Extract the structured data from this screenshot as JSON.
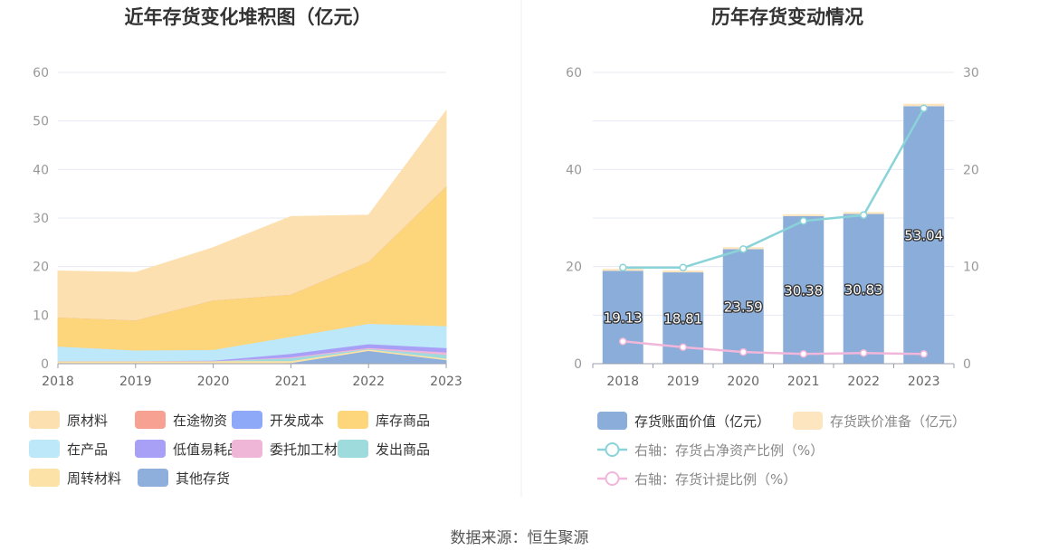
{
  "source": "数据来源：恒生聚源",
  "chart_data": [
    {
      "type": "area",
      "stacked": true,
      "title": "近年存货变化堆积图（亿元）",
      "x": [
        "2018",
        "2019",
        "2020",
        "2021",
        "2022",
        "2023"
      ],
      "ylim": [
        0,
        60
      ],
      "yticks": [
        0,
        10,
        20,
        30,
        40,
        50,
        60
      ],
      "grid": true,
      "legend_position": "bottom",
      "series": [
        {
          "name": "原材料",
          "color": "#fde0b0",
          "values": [
            9.5,
            9.8,
            10.8,
            16.0,
            9.5,
            15.5
          ]
        },
        {
          "name": "在途物资",
          "color": "#f7a192",
          "values": [
            0,
            0,
            0,
            0,
            0,
            0
          ]
        },
        {
          "name": "开发成本",
          "color": "#8ea9f7",
          "values": [
            0,
            0,
            0,
            0,
            0,
            0
          ]
        },
        {
          "name": "库存商品",
          "color": "#fdd57a",
          "values": [
            6.0,
            6.2,
            10.2,
            8.7,
            12.8,
            28.8
          ]
        },
        {
          "name": "在产品",
          "color": "#bde8fa",
          "values": [
            3.0,
            2.2,
            2.2,
            3.5,
            4.2,
            4.5
          ]
        },
        {
          "name": "低值易耗品",
          "color": "#a8a0f7",
          "values": [
            0,
            0,
            0.1,
            0.7,
            0.8,
            0.9
          ]
        },
        {
          "name": "委托加工材料",
          "color": "#efb6d8",
          "values": [
            0,
            0,
            0,
            0.2,
            0.2,
            0.5
          ]
        },
        {
          "name": "发出商品",
          "color": "#9edbdd",
          "values": [
            0,
            0,
            0,
            0.6,
            0.1,
            0.8
          ]
        },
        {
          "name": "周转材料",
          "color": "#fde2a8",
          "values": [
            0.6,
            0.6,
            0.6,
            0.4,
            0.3,
            0.3
          ]
        },
        {
          "name": "其他存货",
          "color": "#8eaedc",
          "values": [
            0,
            0,
            0,
            0.2,
            2.7,
            0.8
          ]
        }
      ]
    },
    {
      "type": "bar",
      "stacked": true,
      "title": "历年存货变动情况",
      "categories": [
        "2018",
        "2019",
        "2020",
        "2021",
        "2022",
        "2023"
      ],
      "ylim": [
        0,
        60
      ],
      "yticks": [
        0,
        20,
        40,
        60
      ],
      "y2lim": [
        0,
        30
      ],
      "y2ticks": [
        0,
        10,
        20,
        30
      ],
      "grid": true,
      "legend_position": "bottom",
      "series": [
        {
          "name": "存货账面价值（亿元）",
          "type": "bar",
          "axis": "left",
          "color": "#8badd9",
          "labels": [
            "19.13",
            "18.81",
            "23.59",
            "30.38",
            "30.83",
            "53.04"
          ],
          "values": [
            19.13,
            18.81,
            23.59,
            30.38,
            30.83,
            53.04
          ]
        },
        {
          "name": "存货跌价准备（亿元）",
          "type": "bar",
          "axis": "left",
          "color": "#fde6bf",
          "values": [
            0.4,
            0.4,
            0.4,
            0.4,
            0.4,
            0.5
          ]
        },
        {
          "name": "右轴：存货占净资产比例（%）",
          "type": "line",
          "axis": "right",
          "color": "#8ad3d8",
          "values": [
            9.9,
            9.9,
            11.8,
            14.7,
            15.3,
            26.3
          ]
        },
        {
          "name": "右轴：存货计提比例（%）",
          "type": "line",
          "axis": "right",
          "color": "#f0b7da",
          "values": [
            2.3,
            1.7,
            1.2,
            1.0,
            1.1,
            1.0
          ]
        }
      ]
    }
  ]
}
